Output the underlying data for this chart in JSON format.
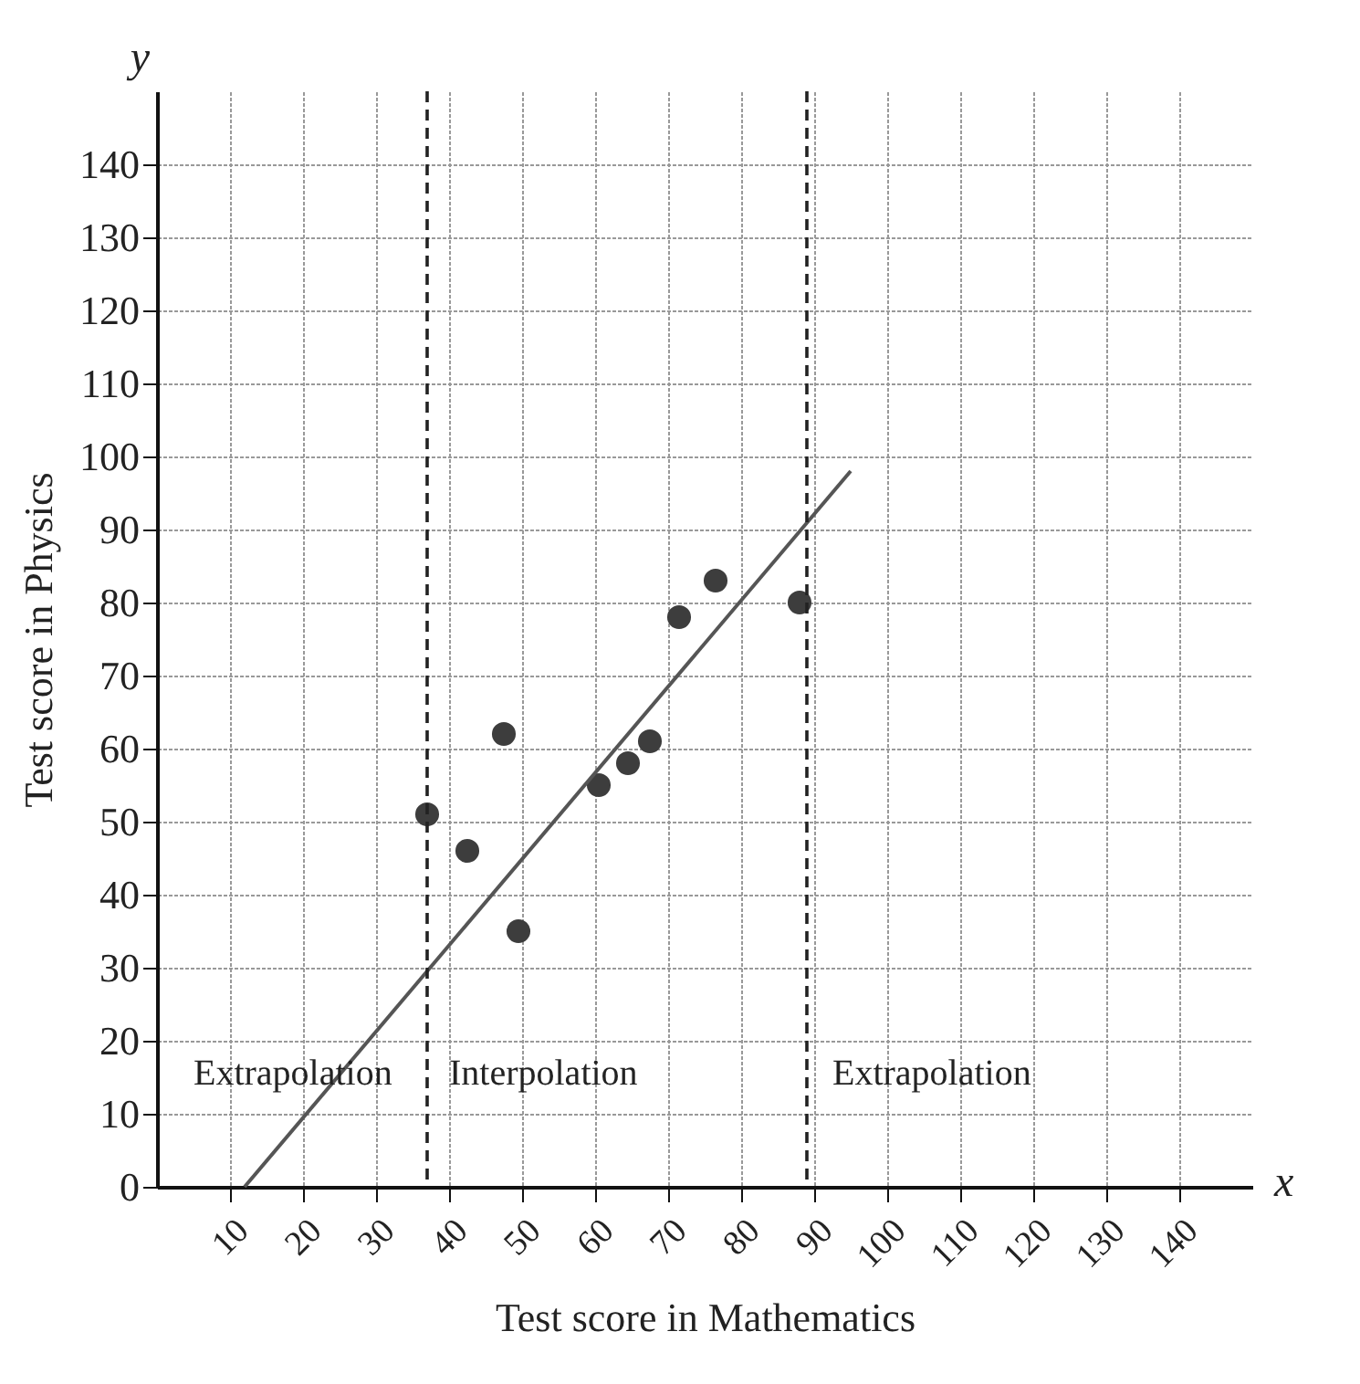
{
  "chart_data": {
    "type": "scatter",
    "xlabel": "Test score in Mathematics",
    "ylabel": "Test score in Physics",
    "xlim": [
      0,
      150
    ],
    "ylim": [
      0,
      150
    ],
    "xticks": [
      10,
      20,
      30,
      40,
      50,
      60,
      70,
      80,
      90,
      100,
      110,
      120,
      130,
      140
    ],
    "yticks": [
      0,
      10,
      20,
      30,
      40,
      50,
      60,
      70,
      80,
      90,
      100,
      110,
      120,
      130,
      140
    ],
    "grid": true,
    "series": [
      {
        "marker": "circle",
        "color": "#3d3d3d",
        "x": [
          37,
          42.5,
          47.5,
          49.5,
          60.5,
          64.5,
          67.5,
          71.5,
          76.5,
          88
        ],
        "values": [
          51,
          46,
          62,
          35,
          55,
          58,
          61,
          78,
          83,
          80
        ]
      },
      {
        "type": "line",
        "color": "#555555",
        "x": [
          12,
          95
        ],
        "values": [
          0,
          98
        ]
      }
    ],
    "ref_lines": [
      {
        "axis": "x",
        "value": 37,
        "color": "#222222",
        "line_style": "dashed"
      },
      {
        "axis": "x",
        "value": 89,
        "color": "#222222",
        "line_style": "dashed"
      }
    ],
    "annotations": [
      "Extrapolation",
      "Interpolation",
      "Extrapolation",
      "x",
      "y"
    ]
  }
}
